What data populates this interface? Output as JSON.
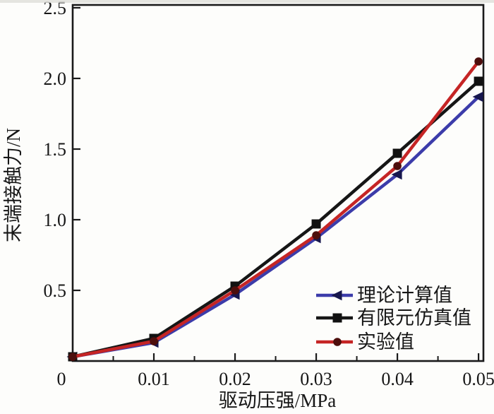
{
  "figure": {
    "background": "#fdfdfb",
    "axis_color": "#1a1a1a",
    "text_color": "#161616"
  },
  "chart_data": {
    "type": "line",
    "title": "",
    "xlabel": "驱动压强/MPa",
    "ylabel": "末端接触力/N",
    "x": [
      0,
      0.01,
      0.02,
      0.03,
      0.04,
      0.05
    ],
    "series": [
      {
        "name": "理论计算值",
        "color": "#3c3caa",
        "marker": "triangle-left",
        "marker_color": "#17174e",
        "values": [
          0.03,
          0.13,
          0.47,
          0.87,
          1.32,
          1.87
        ]
      },
      {
        "name": "有限元仿真值",
        "color": "#161616",
        "marker": "square",
        "marker_color": "#111111",
        "values": [
          0.03,
          0.16,
          0.53,
          0.97,
          1.47,
          1.98
        ]
      },
      {
        "name": "实验值",
        "color": "#c52525",
        "marker": "circle",
        "marker_color": "#4d0e0c",
        "values": [
          0.03,
          0.14,
          0.5,
          0.89,
          1.38,
          2.12
        ]
      }
    ],
    "xlim": [
      0,
      0.0506
    ],
    "ylim": [
      0,
      2.52
    ],
    "x_ticks": {
      "values": [
        0.01,
        0.02,
        0.03,
        0.04,
        0.05
      ],
      "labels": [
        "0.01",
        "0.02",
        "0.03",
        "0.04",
        "0.05"
      ]
    },
    "x_minor_ticks": [
      0.005,
      0.015,
      0.025,
      0.035,
      0.045
    ],
    "y_ticks": {
      "values": [
        0.5,
        1.0,
        1.5,
        2.0,
        2.5
      ],
      "labels": [
        "0.5",
        "1.0",
        "1.5",
        "2.0",
        "2.5"
      ]
    },
    "origin_label": "0",
    "grid": false,
    "legend_position": "lower-right",
    "legend": [
      "理论计算值",
      "有限元仿真值",
      "实验值"
    ]
  }
}
